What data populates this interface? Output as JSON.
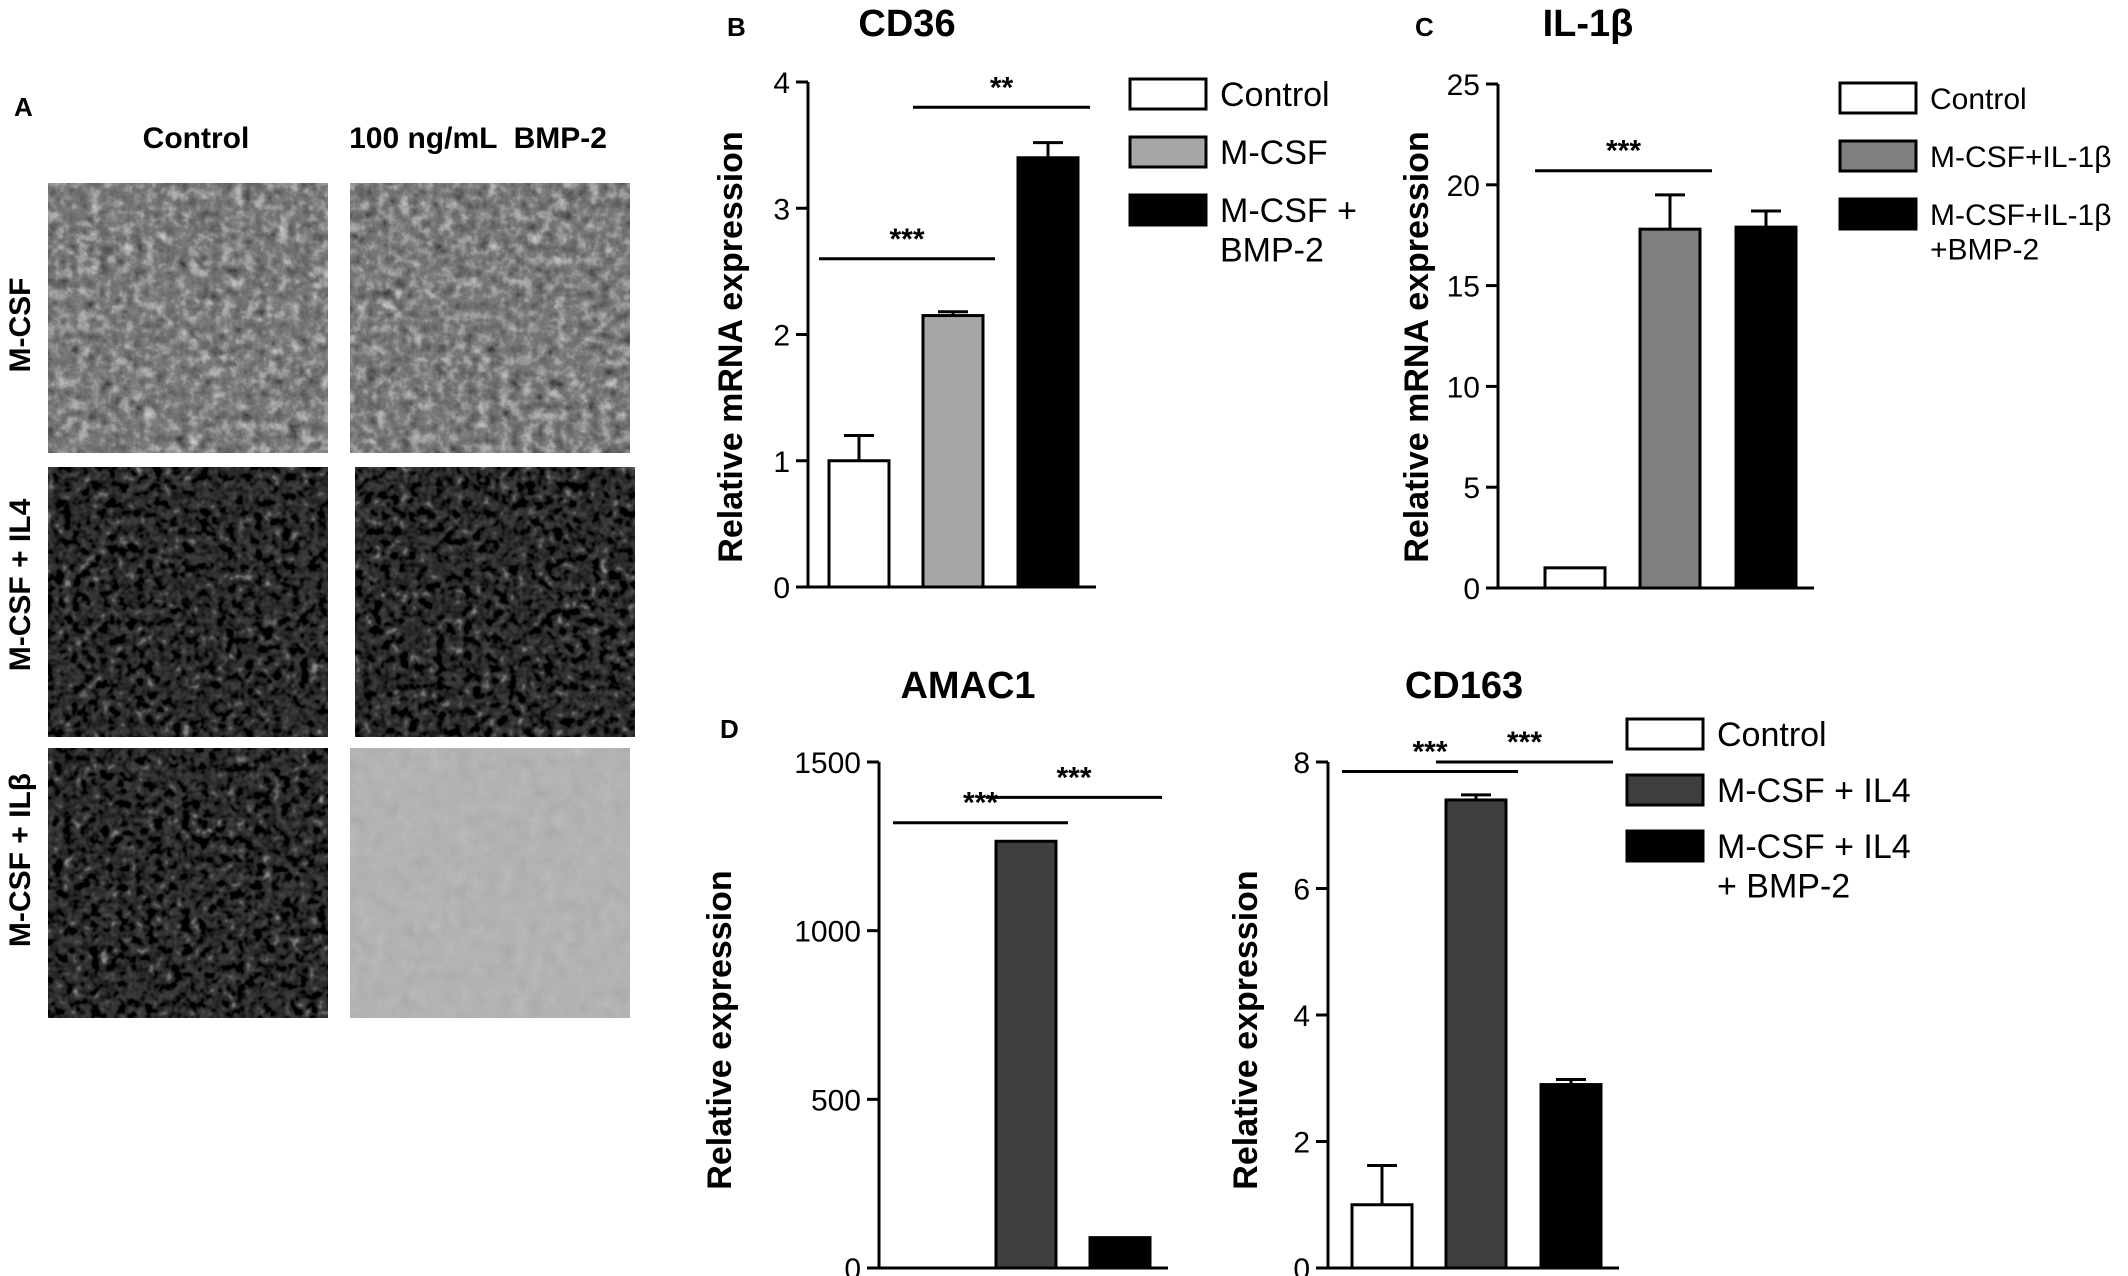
{
  "panel_a": {
    "letter": "A",
    "column_headers": [
      "Control",
      "100 ng/mL  BMP-2"
    ],
    "row_labels": [
      "M-CSF",
      "M-CSF + IL4",
      "M-CSF + ILβ"
    ]
  },
  "chart_data": [
    {
      "id": "cd36",
      "panel_letter": "B",
      "type": "bar",
      "title": "CD36",
      "ylabel": "Relative mRNA expression",
      "ylim": [
        0,
        4
      ],
      "yticks": [
        0,
        1,
        2,
        3,
        4
      ],
      "categories": [
        "Control",
        "M-CSF",
        "M-CSF + BMP-2"
      ],
      "values": [
        1.0,
        2.15,
        3.4
      ],
      "errors": [
        0.2,
        0.03,
        0.12
      ],
      "colors": [
        "#ffffff",
        "#a6a6a6",
        "#000000"
      ],
      "legend": [
        "Control",
        "M-CSF",
        "M-CSF +\nBMP-2"
      ],
      "significance": [
        {
          "from": 0,
          "to": 1,
          "y": 2.6,
          "label": "***"
        },
        {
          "from": 1,
          "to": 2,
          "y": 3.8,
          "label": "**"
        }
      ]
    },
    {
      "id": "il1b",
      "panel_letter": "C",
      "type": "bar",
      "title": "IL-1β",
      "ylabel": "Relative mRNA expression",
      "ylim": [
        0,
        25
      ],
      "yticks": [
        0,
        5,
        10,
        15,
        20,
        25
      ],
      "categories": [
        "Control",
        "M-CSF+IL-1β",
        "M-CSF+IL-1β +BMP-2"
      ],
      "values": [
        1.0,
        17.8,
        17.9
      ],
      "errors": [
        0,
        1.7,
        0.8
      ],
      "colors": [
        "#ffffff",
        "#7f7f7f",
        "#000000"
      ],
      "legend": [
        "Control",
        "M-CSF+IL-1β",
        "M-CSF+IL-1β\n+BMP-2"
      ],
      "significance": [
        {
          "from": 0,
          "to": 1,
          "y": 20.7,
          "label": "***"
        }
      ]
    },
    {
      "id": "amac1",
      "panel_letter": "D",
      "type": "bar",
      "title": "AMAC1",
      "ylabel": "Relative expression",
      "ylim": [
        0,
        1500
      ],
      "yticks": [
        0,
        500,
        1000,
        1500
      ],
      "categories": [
        "Control",
        "M-CSF + IL4",
        "M-CSF + IL4 + BMP-2"
      ],
      "values": [
        0,
        1265,
        90
      ],
      "errors": [
        0,
        0,
        0
      ],
      "colors": [
        "#ffffff",
        "#3f3f3f",
        "#000000"
      ],
      "significance": [
        {
          "from": 0,
          "to": 1,
          "y": 1320,
          "label": "***"
        },
        {
          "from": 1,
          "to": 2,
          "y": 1395,
          "label": "***"
        }
      ]
    },
    {
      "id": "cd163",
      "type": "bar",
      "title": "CD163",
      "ylabel": "Relative expression",
      "ylim": [
        0,
        8
      ],
      "yticks": [
        0,
        2,
        4,
        6,
        8
      ],
      "categories": [
        "Control",
        "M-CSF + IL4",
        "M-CSF + IL4 + BMP-2"
      ],
      "values": [
        1.0,
        7.4,
        2.9
      ],
      "errors": [
        0.62,
        0.08,
        0.08
      ],
      "colors": [
        "#ffffff",
        "#3f3f3f",
        "#000000"
      ],
      "legend": [
        "Control",
        "M-CSF + IL4",
        "M-CSF + IL4\n+ BMP-2"
      ],
      "significance": [
        {
          "from": 0,
          "to": 1,
          "y": 7.85,
          "label": "***"
        },
        {
          "from": 1,
          "to": 2,
          "y": 8.0,
          "label": "***"
        }
      ]
    }
  ]
}
